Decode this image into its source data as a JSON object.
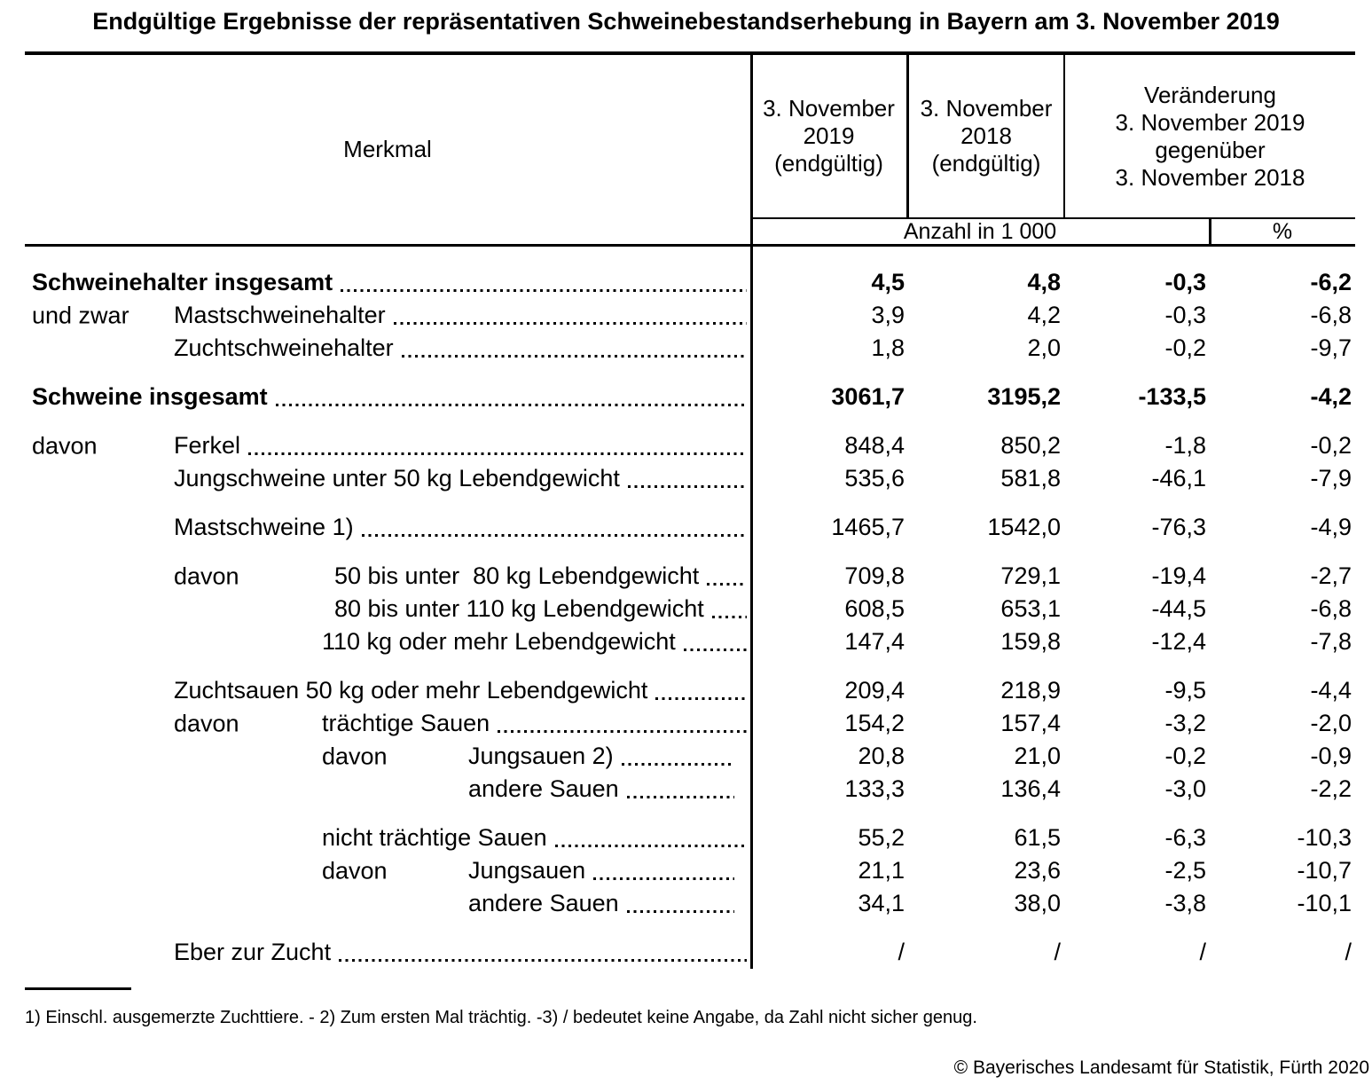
{
  "title": "Endgültige Ergebnisse der repräsentativen Schweinebestandserhebung in Bayern am 3. November 2019",
  "colors": {
    "text": "#000000",
    "background": "#ffffff"
  },
  "header": {
    "merkmal_label": "Merkmal",
    "col_2019_lines": [
      "3. November",
      "2019",
      "(endgültig)"
    ],
    "col_2018_lines": [
      "3. November",
      "2018",
      "(endgültig)"
    ],
    "change_lines": [
      "Veränderung",
      "3. November 2019",
      "gegenüber",
      "3. November 2018"
    ],
    "unit_count": "Anzahl in 1 000",
    "unit_percent": "%"
  },
  "rows": [
    {
      "spacer_before": false,
      "bold": true,
      "prefix": "",
      "prefix_level": "",
      "label": "Schweinehalter insgesamt",
      "label_level": "l0",
      "dots_short": false,
      "values": [
        "4,5",
        "4,8",
        "-0,3",
        "-6,2"
      ]
    },
    {
      "spacer_before": false,
      "bold": false,
      "prefix": "und zwar",
      "prefix_level": "l0",
      "label": "Mastschweinehalter",
      "label_level": "l1",
      "dots_short": false,
      "values": [
        "3,9",
        "4,2",
        "-0,3",
        "-6,8"
      ]
    },
    {
      "spacer_before": false,
      "bold": false,
      "prefix": "",
      "prefix_level": "",
      "label": "Zuchtschweinehalter",
      "label_level": "l1",
      "dots_short": false,
      "values": [
        "1,8",
        "2,0",
        "-0,2",
        "-9,7"
      ]
    },
    {
      "spacer_before": true,
      "bold": true,
      "prefix": "",
      "prefix_level": "",
      "label": "Schweine insgesamt",
      "label_level": "l0",
      "dots_short": false,
      "values": [
        "3061,7",
        "3195,2",
        "-133,5",
        "-4,2"
      ]
    },
    {
      "spacer_before": true,
      "bold": false,
      "prefix": "davon",
      "prefix_level": "l0",
      "label": "Ferkel",
      "label_level": "l1",
      "dots_short": false,
      "values": [
        "848,4",
        "850,2",
        "-1,8",
        "-0,2"
      ]
    },
    {
      "spacer_before": false,
      "bold": false,
      "prefix": "",
      "prefix_level": "",
      "label": "Jungschweine unter 50 kg Lebendgewicht",
      "label_level": "l1",
      "dots_short": false,
      "values": [
        "535,6",
        "581,8",
        "-46,1",
        "-7,9"
      ]
    },
    {
      "spacer_before": true,
      "bold": false,
      "prefix": "",
      "prefix_level": "",
      "label": "Mastschweine 1)",
      "label_level": "l1",
      "dots_short": false,
      "values": [
        "1465,7",
        "1542,0",
        "-76,3",
        "-4,9"
      ]
    },
    {
      "spacer_before": true,
      "bold": false,
      "prefix": "davon",
      "prefix_level": "l1",
      "label": "50 bis unter  80 kg Lebendgewicht",
      "label_level": "l2w",
      "dots_short": false,
      "values": [
        "709,8",
        "729,1",
        "-19,4",
        "-2,7"
      ]
    },
    {
      "spacer_before": false,
      "bold": false,
      "prefix": "",
      "prefix_level": "",
      "label": "80 bis unter 110 kg Lebendgewicht",
      "label_level": "l2w",
      "dots_short": false,
      "values": [
        "608,5",
        "653,1",
        "-44,5",
        "-6,8"
      ]
    },
    {
      "spacer_before": false,
      "bold": false,
      "prefix": "",
      "prefix_level": "",
      "label": "110 kg oder mehr Lebendgewicht",
      "label_level": "l2",
      "dots_short": false,
      "values": [
        "147,4",
        "159,8",
        "-12,4",
        "-7,8"
      ]
    },
    {
      "spacer_before": true,
      "bold": false,
      "prefix": "",
      "prefix_level": "",
      "label": "Zuchtsauen 50 kg oder mehr Lebendgewicht",
      "label_level": "l1",
      "dots_short": false,
      "values": [
        "209,4",
        "218,9",
        "-9,5",
        "-4,4"
      ]
    },
    {
      "spacer_before": false,
      "bold": false,
      "prefix": "davon",
      "prefix_level": "l1",
      "label": "trächtige Sauen",
      "label_level": "l2",
      "dots_short": false,
      "values": [
        "154,2",
        "157,4",
        "-3,2",
        "-2,0"
      ]
    },
    {
      "spacer_before": false,
      "bold": false,
      "prefix": "davon",
      "prefix_level": "l2",
      "label": "Jungsauen 2)",
      "label_level": "l3",
      "dots_short": true,
      "values": [
        "20,8",
        "21,0",
        "-0,2",
        "-0,9"
      ]
    },
    {
      "spacer_before": false,
      "bold": false,
      "prefix": "",
      "prefix_level": "",
      "label": "andere Sauen",
      "label_level": "l3",
      "dots_short": true,
      "values": [
        "133,3",
        "136,4",
        "-3,0",
        "-2,2"
      ]
    },
    {
      "spacer_before": true,
      "bold": false,
      "prefix": "",
      "prefix_level": "",
      "label": "nicht trächtige Sauen",
      "label_level": "l2",
      "dots_short": false,
      "values": [
        "55,2",
        "61,5",
        "-6,3",
        "-10,3"
      ]
    },
    {
      "spacer_before": false,
      "bold": false,
      "prefix": "davon",
      "prefix_level": "l2",
      "label": "Jungsauen",
      "label_level": "l3",
      "dots_short": true,
      "values": [
        "21,1",
        "23,6",
        "-2,5",
        "-10,7"
      ]
    },
    {
      "spacer_before": false,
      "bold": false,
      "prefix": "",
      "prefix_level": "",
      "label": "andere Sauen",
      "label_level": "l3",
      "dots_short": true,
      "values": [
        "34,1",
        "38,0",
        "-3,8",
        "-10,1"
      ]
    },
    {
      "spacer_before": true,
      "bold": false,
      "prefix": "",
      "prefix_level": "",
      "label": "Eber zur Zucht",
      "label_level": "l1",
      "dots_short": false,
      "values": [
        "/",
        "/",
        "/",
        "/"
      ]
    }
  ],
  "footnote": "1) Einschl. ausgemerzte Zuchttiere. - 2) Zum ersten Mal trächtig. -3) / bedeutet keine Angabe, da Zahl nicht sicher genug.",
  "copyright": "© Bayerisches Landesamt für Statistik, Fürth 2020"
}
